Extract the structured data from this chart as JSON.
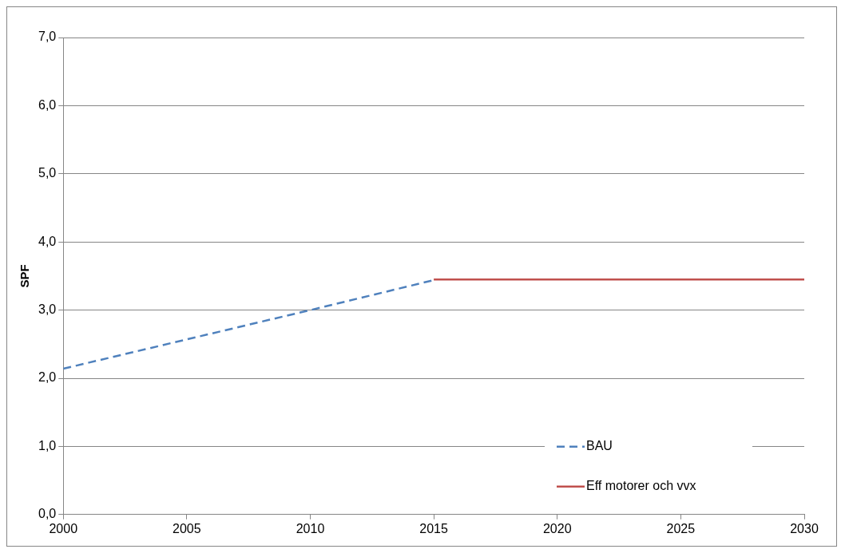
{
  "chart_data": {
    "type": "line",
    "ylabel": "SPF",
    "xlim": [
      2000,
      2030
    ],
    "xticks": [
      2000,
      2005,
      2010,
      2015,
      2020,
      2025,
      2030
    ],
    "ylim": [
      0,
      7
    ],
    "yticks": [
      {
        "value": 0,
        "label": "0,0"
      },
      {
        "value": 1,
        "label": "1,0"
      },
      {
        "value": 2,
        "label": "2,0"
      },
      {
        "value": 3,
        "label": "3,0"
      },
      {
        "value": 4,
        "label": "4,0"
      },
      {
        "value": 5,
        "label": "5,0"
      },
      {
        "value": 6,
        "label": "6,0"
      },
      {
        "value": 7,
        "label": "7,0"
      }
    ],
    "grid": "y",
    "legend": "bottom right",
    "marker": "none",
    "series": [
      {
        "name": "BAU",
        "color": "#4f81bd",
        "line_style": "dashed",
        "x": [
          2000,
          2010,
          2015
        ],
        "values": [
          2.14,
          3.0,
          3.44
        ]
      },
      {
        "name": "Eff motorer och vvx",
        "color": "#c0504d",
        "line_style": "solid",
        "x": [
          2015,
          2030
        ],
        "values": [
          3.45,
          3.45
        ]
      }
    ]
  }
}
